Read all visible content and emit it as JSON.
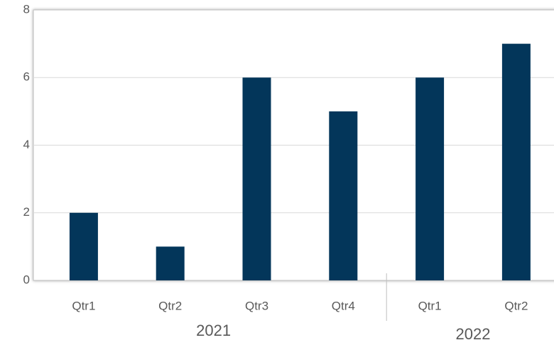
{
  "chart_data": {
    "type": "bar",
    "groups": [
      {
        "label": "2021",
        "categories": [
          "Qtr1",
          "Qtr2",
          "Qtr3",
          "Qtr4"
        ],
        "values": [
          2,
          1,
          6,
          5
        ]
      },
      {
        "label": "2022",
        "categories": [
          "Qtr1",
          "Qtr2"
        ],
        "values": [
          6,
          7
        ]
      }
    ],
    "color": "#03365a",
    "ylim": [
      0,
      8
    ],
    "yticks": [
      0,
      2,
      4,
      6,
      8
    ],
    "grid": true
  }
}
